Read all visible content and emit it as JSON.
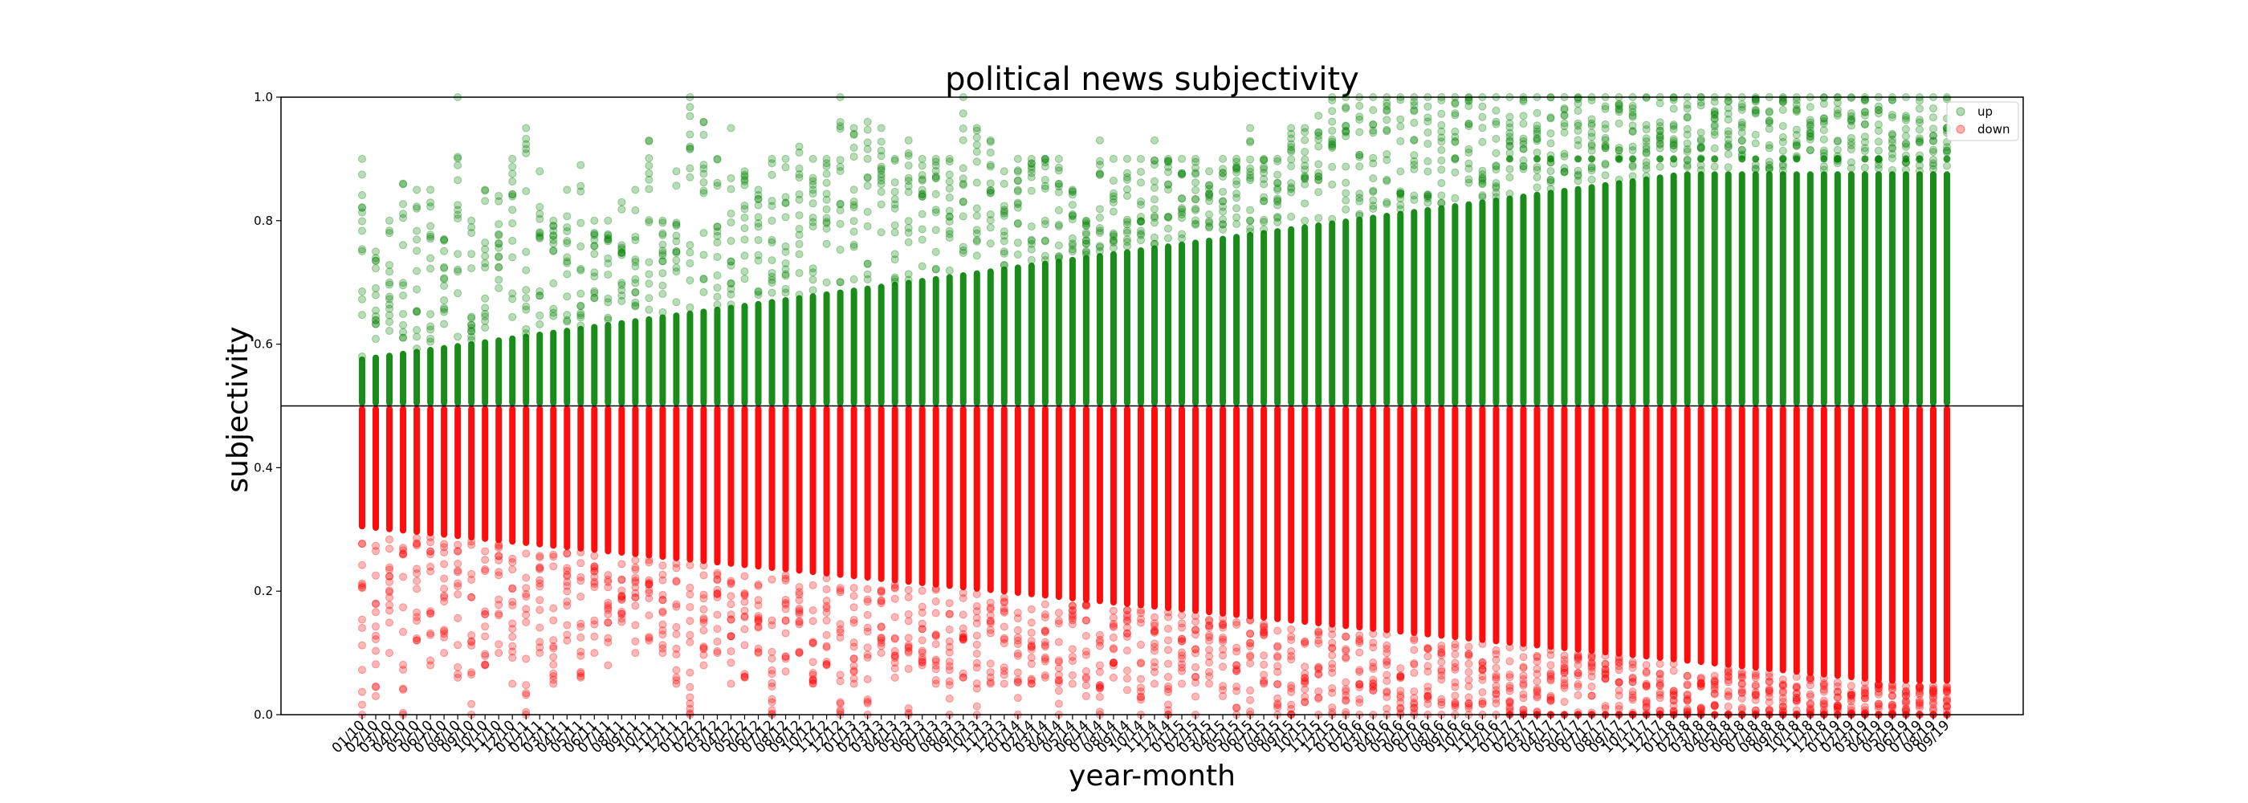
{
  "chart_data": {
    "type": "scatter",
    "title": "political news subjectivity",
    "xlabel": "year-month",
    "ylabel": "subjectivity",
    "ylim": [
      0.0,
      1.0
    ],
    "yticks": [
      "0.0",
      "0.2",
      "0.4",
      "0.6",
      "0.8",
      "1.0"
    ],
    "reference_line": 0.5,
    "grid": false,
    "legend_position": "top-right",
    "categories": [
      "01/10",
      "02/10",
      "03/10",
      "04/10",
      "05/10",
      "06/10",
      "07/10",
      "08/10",
      "09/10",
      "10/10",
      "11/10",
      "12/10",
      "01/11",
      "02/11",
      "03/11",
      "04/11",
      "05/11",
      "06/11",
      "07/11",
      "08/11",
      "09/11",
      "10/11",
      "11/11",
      "12/11",
      "01/12",
      "02/12",
      "03/12",
      "04/12",
      "05/12",
      "06/12",
      "07/12",
      "08/12",
      "09/12",
      "10/12",
      "11/12",
      "12/12",
      "01/13",
      "02/13",
      "03/13",
      "04/13",
      "05/13",
      "06/13",
      "07/13",
      "08/13",
      "09/13",
      "10/13",
      "11/13",
      "12/13",
      "01/14",
      "02/14",
      "03/14",
      "04/14",
      "05/14",
      "06/14",
      "07/14",
      "08/14",
      "09/14",
      "10/14",
      "11/14",
      "12/14",
      "01/15",
      "02/15",
      "03/15",
      "04/15",
      "05/15",
      "06/15",
      "07/15",
      "08/15",
      "09/15",
      "10/15",
      "11/15",
      "12/15",
      "01/16",
      "02/16",
      "03/16",
      "04/16",
      "05/16",
      "06/16",
      "07/16",
      "08/16",
      "09/16",
      "10/16",
      "11/16",
      "12/16",
      "01/17",
      "02/17",
      "03/17",
      "04/17",
      "05/17",
      "06/17",
      "07/17",
      "08/17",
      "09/17",
      "10/17",
      "11/17",
      "12/17",
      "01/18",
      "02/18",
      "03/18",
      "04/18",
      "05/18",
      "06/18",
      "07/18",
      "08/18",
      "09/18",
      "10/18",
      "11/18",
      "12/18",
      "01/19",
      "02/19",
      "03/19",
      "04/19",
      "05/19",
      "06/19",
      "07/19",
      "08/19",
      "09/19"
    ],
    "series": [
      {
        "name": "up",
        "color": "#008000",
        "range": [
          0.5,
          1.0
        ],
        "max_values": [
          0.9,
          0.75,
          0.8,
          0.86,
          0.85,
          0.85,
          0.77,
          1.0,
          0.8,
          0.85,
          0.84,
          0.9,
          0.95,
          0.88,
          0.8,
          0.85,
          0.89,
          0.8,
          0.8,
          0.83,
          0.85,
          0.93,
          0.8,
          0.88,
          1.0,
          0.96,
          0.9,
          0.95,
          0.88,
          0.85,
          0.9,
          0.9,
          0.92,
          0.9,
          0.9,
          1.0,
          0.95,
          0.96,
          0.95,
          0.9,
          0.93,
          0.9,
          0.9,
          0.9,
          1.0,
          0.95,
          0.93,
          0.88,
          0.9,
          0.9,
          0.9,
          0.9,
          0.85,
          0.8,
          0.93,
          0.9,
          0.9,
          0.9,
          0.93,
          0.9,
          0.9,
          0.9,
          0.88,
          0.9,
          0.9,
          0.95,
          0.9,
          0.9,
          0.95,
          0.95,
          0.97,
          1.0,
          1.0,
          1.0,
          1.0,
          1.0,
          1.0,
          1.0,
          1.0,
          1.0,
          1.0,
          1.0,
          1.0,
          1.0,
          1.0,
          1.0,
          1.0,
          1.0,
          1.0,
          1.0,
          1.0,
          1.0,
          1.0,
          1.0,
          1.0,
          1.0,
          1.0,
          1.0,
          1.0,
          1.0,
          1.0,
          1.0,
          1.0,
          1.0,
          1.0,
          1.0,
          1.0,
          1.0,
          1.0,
          1.0,
          1.0,
          1.0,
          1.0,
          1.0,
          1.0,
          1.0,
          1.0
        ]
      },
      {
        "name": "down",
        "color": "#ff0000",
        "range": [
          0.0,
          0.5
        ],
        "min_values": [
          0.0,
          0.03,
          0.1,
          0.0,
          0.12,
          0.08,
          0.1,
          0.06,
          0.0,
          0.08,
          0.1,
          0.05,
          0.0,
          0.1,
          0.05,
          0.12,
          0.06,
          0.1,
          0.08,
          0.15,
          0.1,
          0.12,
          0.1,
          0.05,
          0.0,
          0.08,
          0.1,
          0.05,
          0.06,
          0.1,
          0.0,
          0.07,
          0.1,
          0.05,
          0.08,
          0.0,
          0.05,
          0.0,
          0.1,
          0.06,
          0.0,
          0.08,
          0.05,
          0.0,
          0.06,
          0.0,
          0.05,
          0.05,
          0.0,
          0.05,
          0.06,
          0.0,
          0.05,
          0.03,
          0.0,
          0.06,
          0.04,
          0.0,
          0.05,
          0.0,
          0.05,
          0.0,
          0.05,
          0.03,
          0.0,
          0.0,
          0.05,
          0.0,
          0.0,
          0.02,
          0.0,
          0.0,
          0.0,
          0.0,
          0.0,
          0.0,
          0.0,
          0.0,
          0.0,
          0.0,
          0.0,
          0.0,
          0.0,
          0.0,
          0.0,
          0.0,
          0.0,
          0.0,
          0.0,
          0.0,
          0.0,
          0.0,
          0.0,
          0.0,
          0.0,
          0.0,
          0.0,
          0.0,
          0.0,
          0.0,
          0.0,
          0.0,
          0.0,
          0.0,
          0.0,
          0.0,
          0.0,
          0.0,
          0.0,
          0.0,
          0.0,
          0.0,
          0.0,
          0.0,
          0.0,
          0.0,
          0.0
        ]
      }
    ]
  }
}
